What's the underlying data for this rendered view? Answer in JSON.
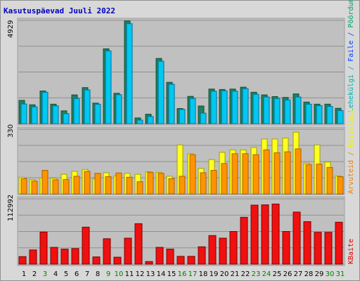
{
  "chart_data": [
    {
      "type": "bar",
      "title": "Kasutuspäevad Juuli 2022",
      "x": [
        "1",
        "2",
        "3",
        "4",
        "5",
        "6",
        "7",
        "8",
        "9",
        "10",
        "11",
        "12",
        "13",
        "14",
        "15",
        "16",
        "17",
        "18",
        "19",
        "20",
        "21",
        "22",
        "23",
        "24",
        "25",
        "26",
        "27",
        "28",
        "29",
        "30",
        "31"
      ],
      "weekend": [
        false,
        false,
        true,
        false,
        false,
        false,
        false,
        false,
        true,
        true,
        false,
        false,
        false,
        false,
        false,
        true,
        true,
        false,
        false,
        false,
        false,
        false,
        true,
        true,
        false,
        false,
        false,
        false,
        false,
        true,
        true
      ],
      "ymax_label": "4929",
      "ymax": 4929,
      "legend": {
        "a": "Lehekülgi",
        "sep1": " / ",
        "b": "Faile",
        "sep2": " / ",
        "c": "Pöördumisi"
      },
      "legend_colors": {
        "a": "#00b0b0",
        "b": "#0040ff",
        "c": "#00a070"
      },
      "series": [
        {
          "name": "Pöördumisi",
          "color": "#208060",
          "values": [
            1110,
            900,
            1560,
            930,
            610,
            1370,
            1720,
            980,
            3570,
            1450,
            4900,
            270,
            450,
            3110,
            1970,
            720,
            1300,
            840,
            1650,
            1630,
            1650,
            1740,
            1500,
            1370,
            1290,
            1250,
            1420,
            1030,
            930,
            930,
            730
          ]
        },
        {
          "name": "Faile",
          "color": "#00c8f0",
          "values": [
            940,
            800,
            1500,
            850,
            480,
            1200,
            1610,
            930,
            3470,
            1380,
            4770,
            170,
            340,
            2980,
            1880,
            680,
            1200,
            500,
            1550,
            1570,
            1550,
            1670,
            1400,
            1270,
            1200,
            1130,
            1270,
            930,
            860,
            820,
            620
          ]
        }
      ]
    },
    {
      "type": "bar",
      "ymax_label": "330",
      "ymax": 330,
      "legend": {
        "a": "Arvuteid",
        "sep1": " / ",
        "b": "Külastusi"
      },
      "legend_colors": {
        "a": "#f08000",
        "b": "#f0f000"
      },
      "series": [
        {
          "name": "Külastusi",
          "color": "#ffff20",
          "values": [
            85,
            72,
            82,
            80,
            100,
            115,
            125,
            78,
            108,
            92,
            105,
            100,
            113,
            110,
            90,
            250,
            205,
            130,
            175,
            212,
            225,
            225,
            237,
            280,
            280,
            285,
            315,
            157,
            250,
            163,
            92
          ]
        },
        {
          "name": "Arvuteid",
          "color": "#ff9400",
          "values": [
            78,
            65,
            120,
            72,
            73,
            90,
            115,
            105,
            88,
            107,
            85,
            62,
            110,
            105,
            78,
            90,
            200,
            108,
            120,
            155,
            205,
            205,
            200,
            225,
            210,
            215,
            230,
            150,
            152,
            135,
            88
          ]
        }
      ]
    },
    {
      "type": "bar",
      "ymax_label": "112992",
      "ymax": 112992,
      "legend": {
        "a": "KBaite"
      },
      "legend_colors": {
        "a": "#e00000"
      },
      "series": [
        {
          "name": "KBaite",
          "color": "#f01010",
          "values": [
            13000,
            24500,
            55500,
            29000,
            26000,
            27000,
            64000,
            12500,
            44000,
            12000,
            45000,
            70000,
            4500,
            29000,
            26000,
            13500,
            13500,
            30000,
            49500,
            45000,
            56500,
            81000,
            102000,
            102500,
            104000,
            56500,
            90000,
            73500,
            55000,
            55000,
            72500
          ]
        }
      ]
    }
  ]
}
